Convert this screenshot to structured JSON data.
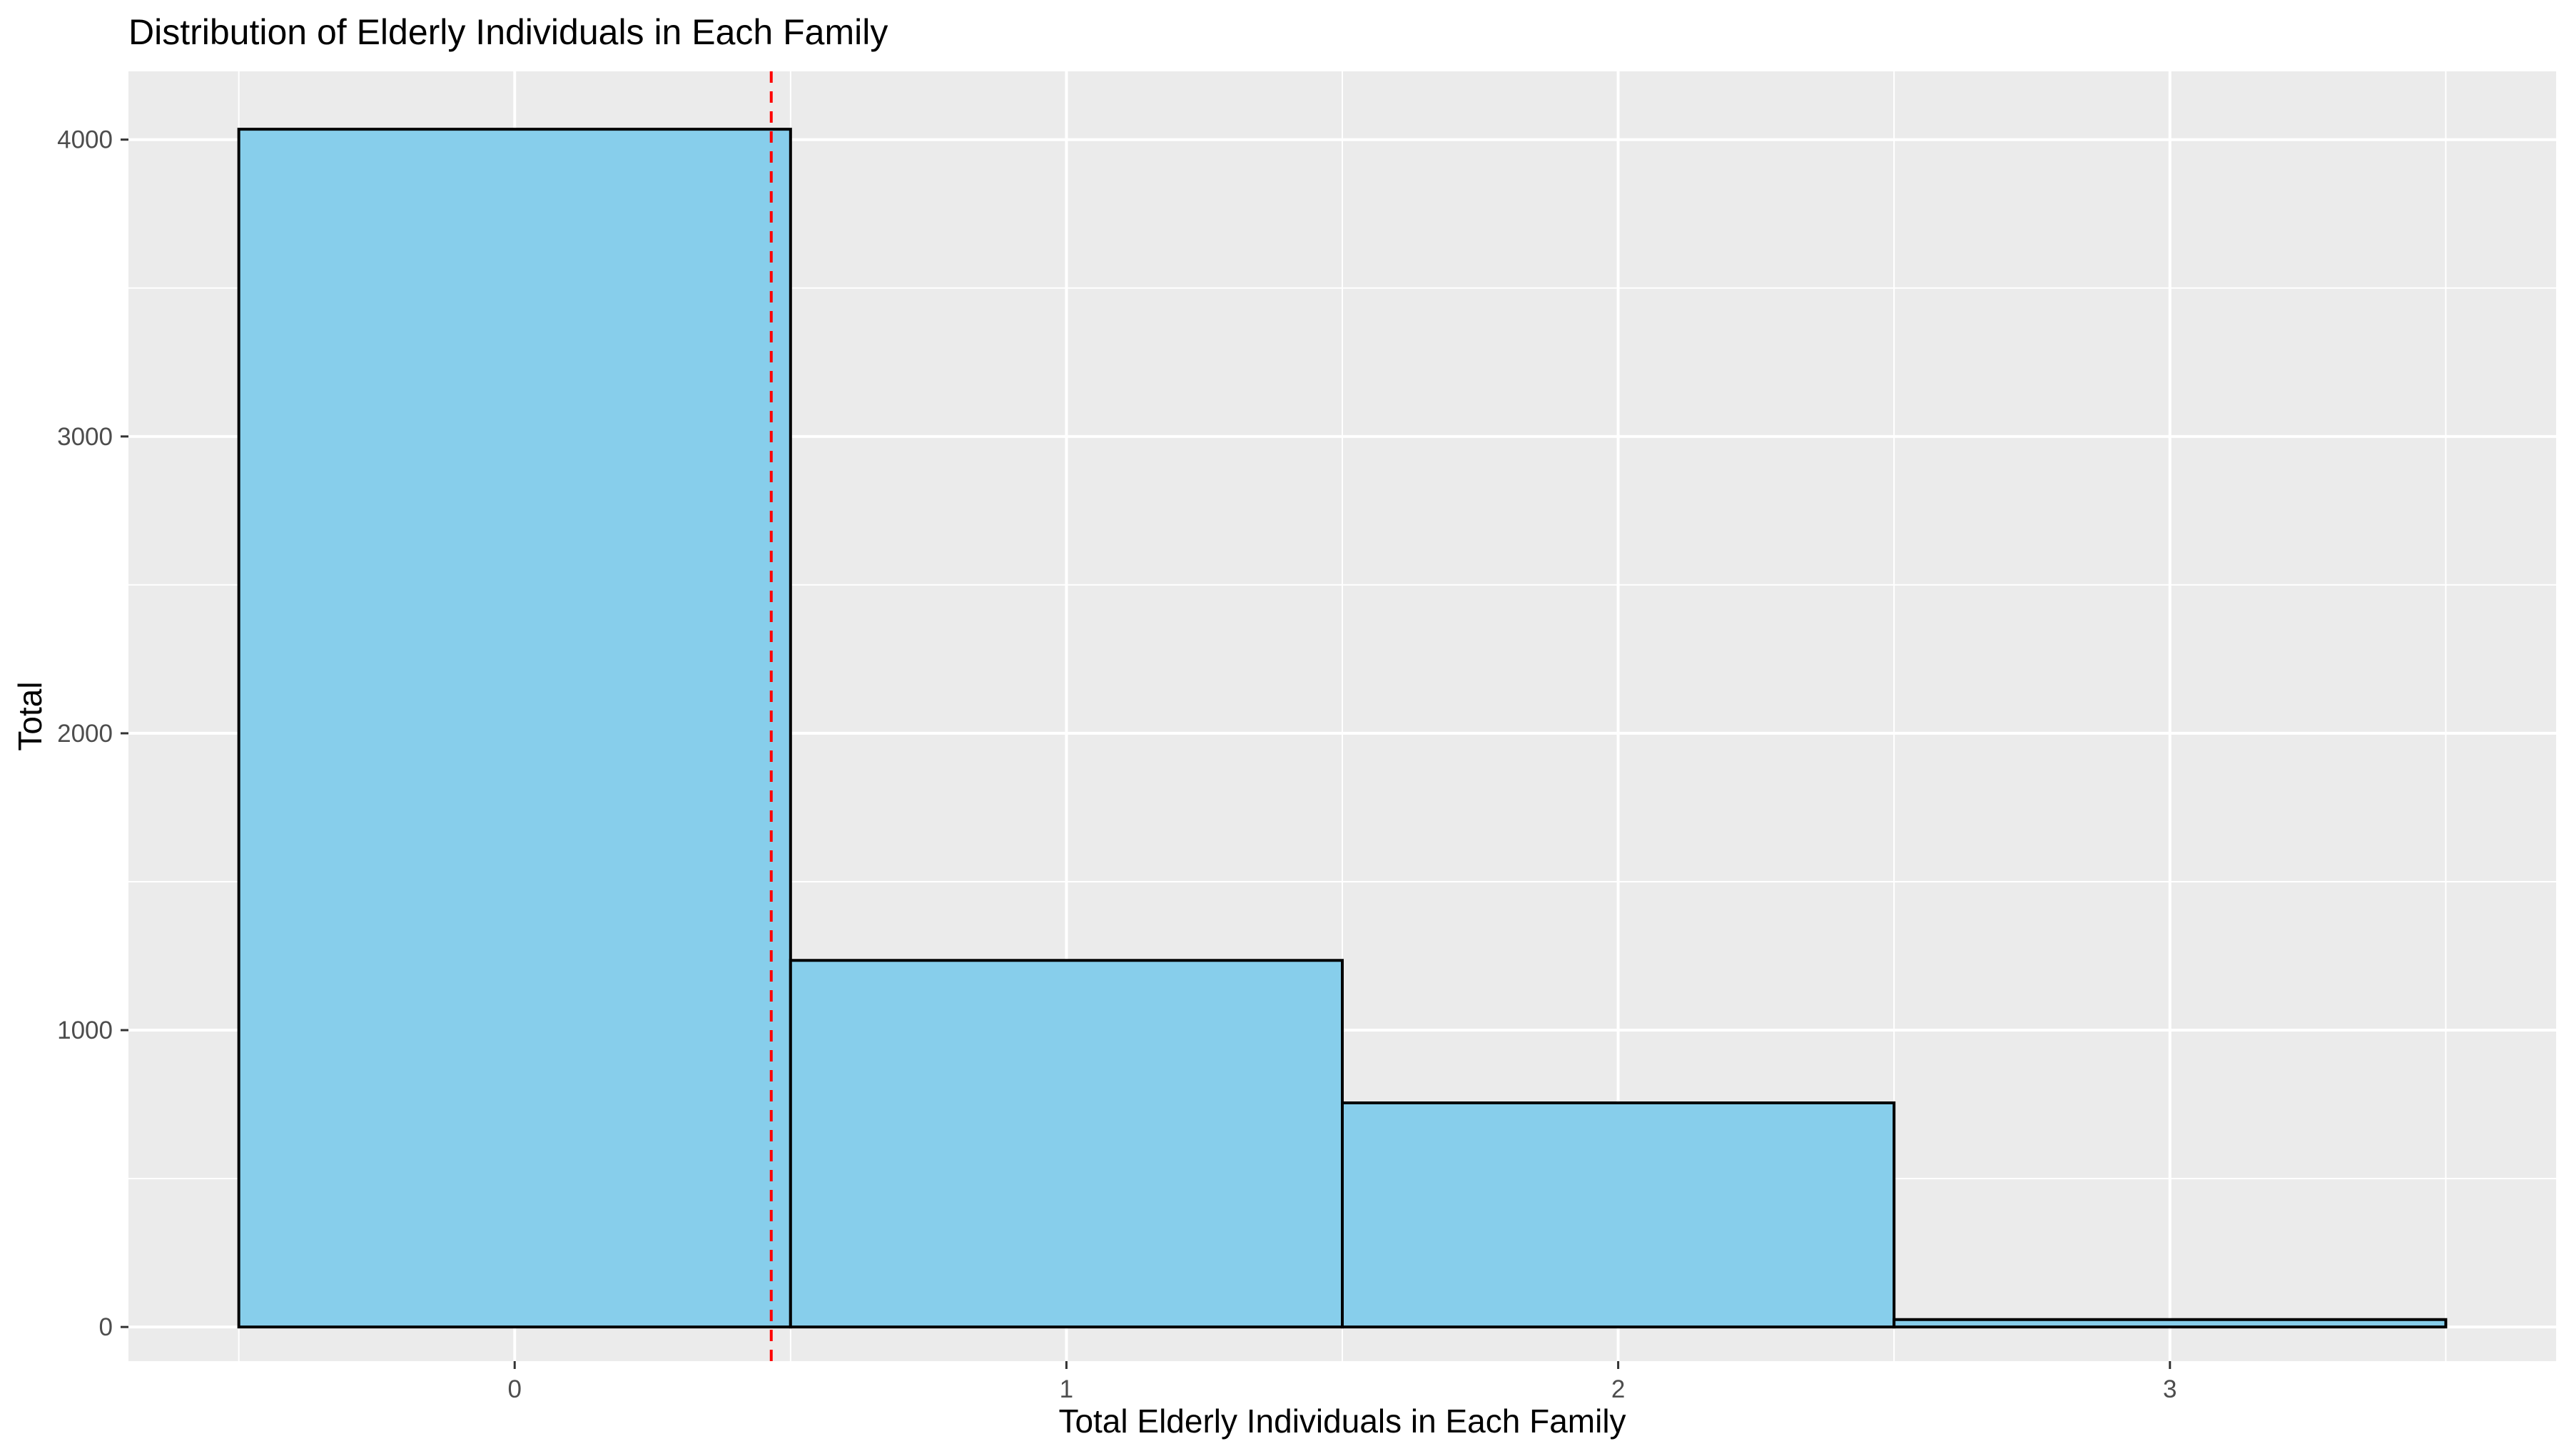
{
  "chart_data": {
    "type": "bar",
    "title": "Distribution of Elderly Individuals in Each Family",
    "xlabel": "Total Elderly Individuals in Each Family",
    "ylabel": "Total",
    "categories": [
      "0",
      "1",
      "2",
      "3"
    ],
    "bins": [
      {
        "x": 0,
        "value": 4035
      },
      {
        "x": 1,
        "value": 1235
      },
      {
        "x": 2,
        "value": 755
      },
      {
        "x": 3,
        "value": 25
      }
    ],
    "bin_width": 1,
    "xlim": [
      -0.7,
      3.7
    ],
    "ylim": [
      -115,
      4230
    ],
    "x_ticks": [
      0,
      1,
      2,
      3
    ],
    "y_ticks": [
      0,
      1000,
      2000,
      3000,
      4000
    ],
    "reference_line": {
      "x": 0.465,
      "style": "dashed",
      "color": "#ff0000"
    },
    "grid": true,
    "legend": "none",
    "colors": {
      "bar_fill": "#87ceeb",
      "bar_stroke": "#000000",
      "panel_background": "#ebebeb",
      "grid": "#ffffff",
      "reference_line": "#ff0000"
    }
  }
}
